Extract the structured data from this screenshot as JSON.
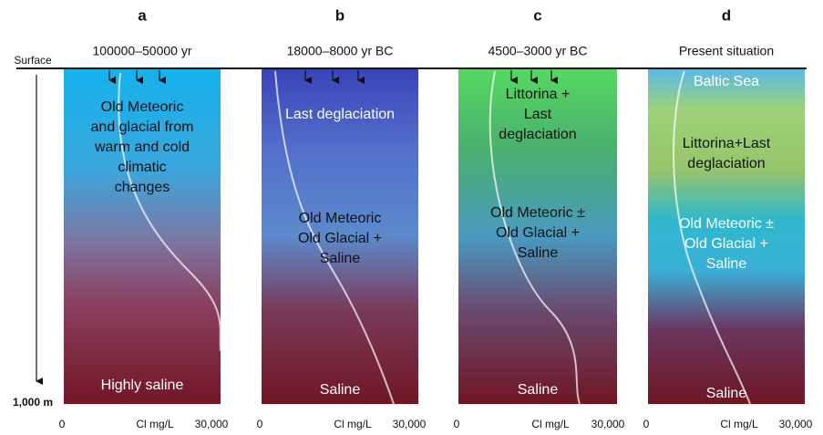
{
  "depth": {
    "surface": "Surface",
    "bottom": "1,000 m"
  },
  "panels": [
    {
      "label": "a",
      "period": "100000–50000 yr",
      "zones": [
        {
          "lines": [
            "Old Meteoric",
            "and glacial from",
            "warm and cold",
            "climatic",
            "changes"
          ]
        },
        {
          "lines": [
            "Highly saline"
          ]
        }
      ],
      "x_axis": {
        "min": "0",
        "unit": "Cl mg/L",
        "max": "30,000"
      }
    },
    {
      "label": "b",
      "period": "18000–8000 yr BC",
      "zones": [
        {
          "lines": [
            "Last deglaciation"
          ]
        },
        {
          "lines": [
            "Old Meteoric",
            "Old Glacial +",
            "Saline"
          ]
        },
        {
          "lines": [
            "Saline"
          ]
        }
      ],
      "x_axis": {
        "min": "0",
        "unit": "Cl mg/L",
        "max": "30,000"
      }
    },
    {
      "label": "c",
      "period": "4500–3000 yr BC",
      "zones": [
        {
          "lines": [
            "Littorina +",
            "Last",
            "deglaciation"
          ]
        },
        {
          "lines": [
            "Old Meteoric ±",
            "Old Glacial   +",
            "Saline"
          ]
        },
        {
          "lines": [
            "Saline"
          ]
        }
      ],
      "x_axis": {
        "min": "0",
        "unit": "Cl mg/L",
        "max": "30,000"
      }
    },
    {
      "label": "d",
      "period": "Present situation",
      "zones": [
        {
          "lines": [
            "Baltic Sea"
          ]
        },
        {
          "lines": [
            "Littorina+Last",
            "deglaciation"
          ]
        },
        {
          "lines": [
            "Old Meteoric ±",
            "Old  Glacial +",
            "Saline"
          ]
        },
        {
          "lines": [
            "Saline"
          ]
        }
      ],
      "x_axis": {
        "min": "0",
        "unit": "Cl mg/L",
        "max": "30,000"
      }
    }
  ]
}
